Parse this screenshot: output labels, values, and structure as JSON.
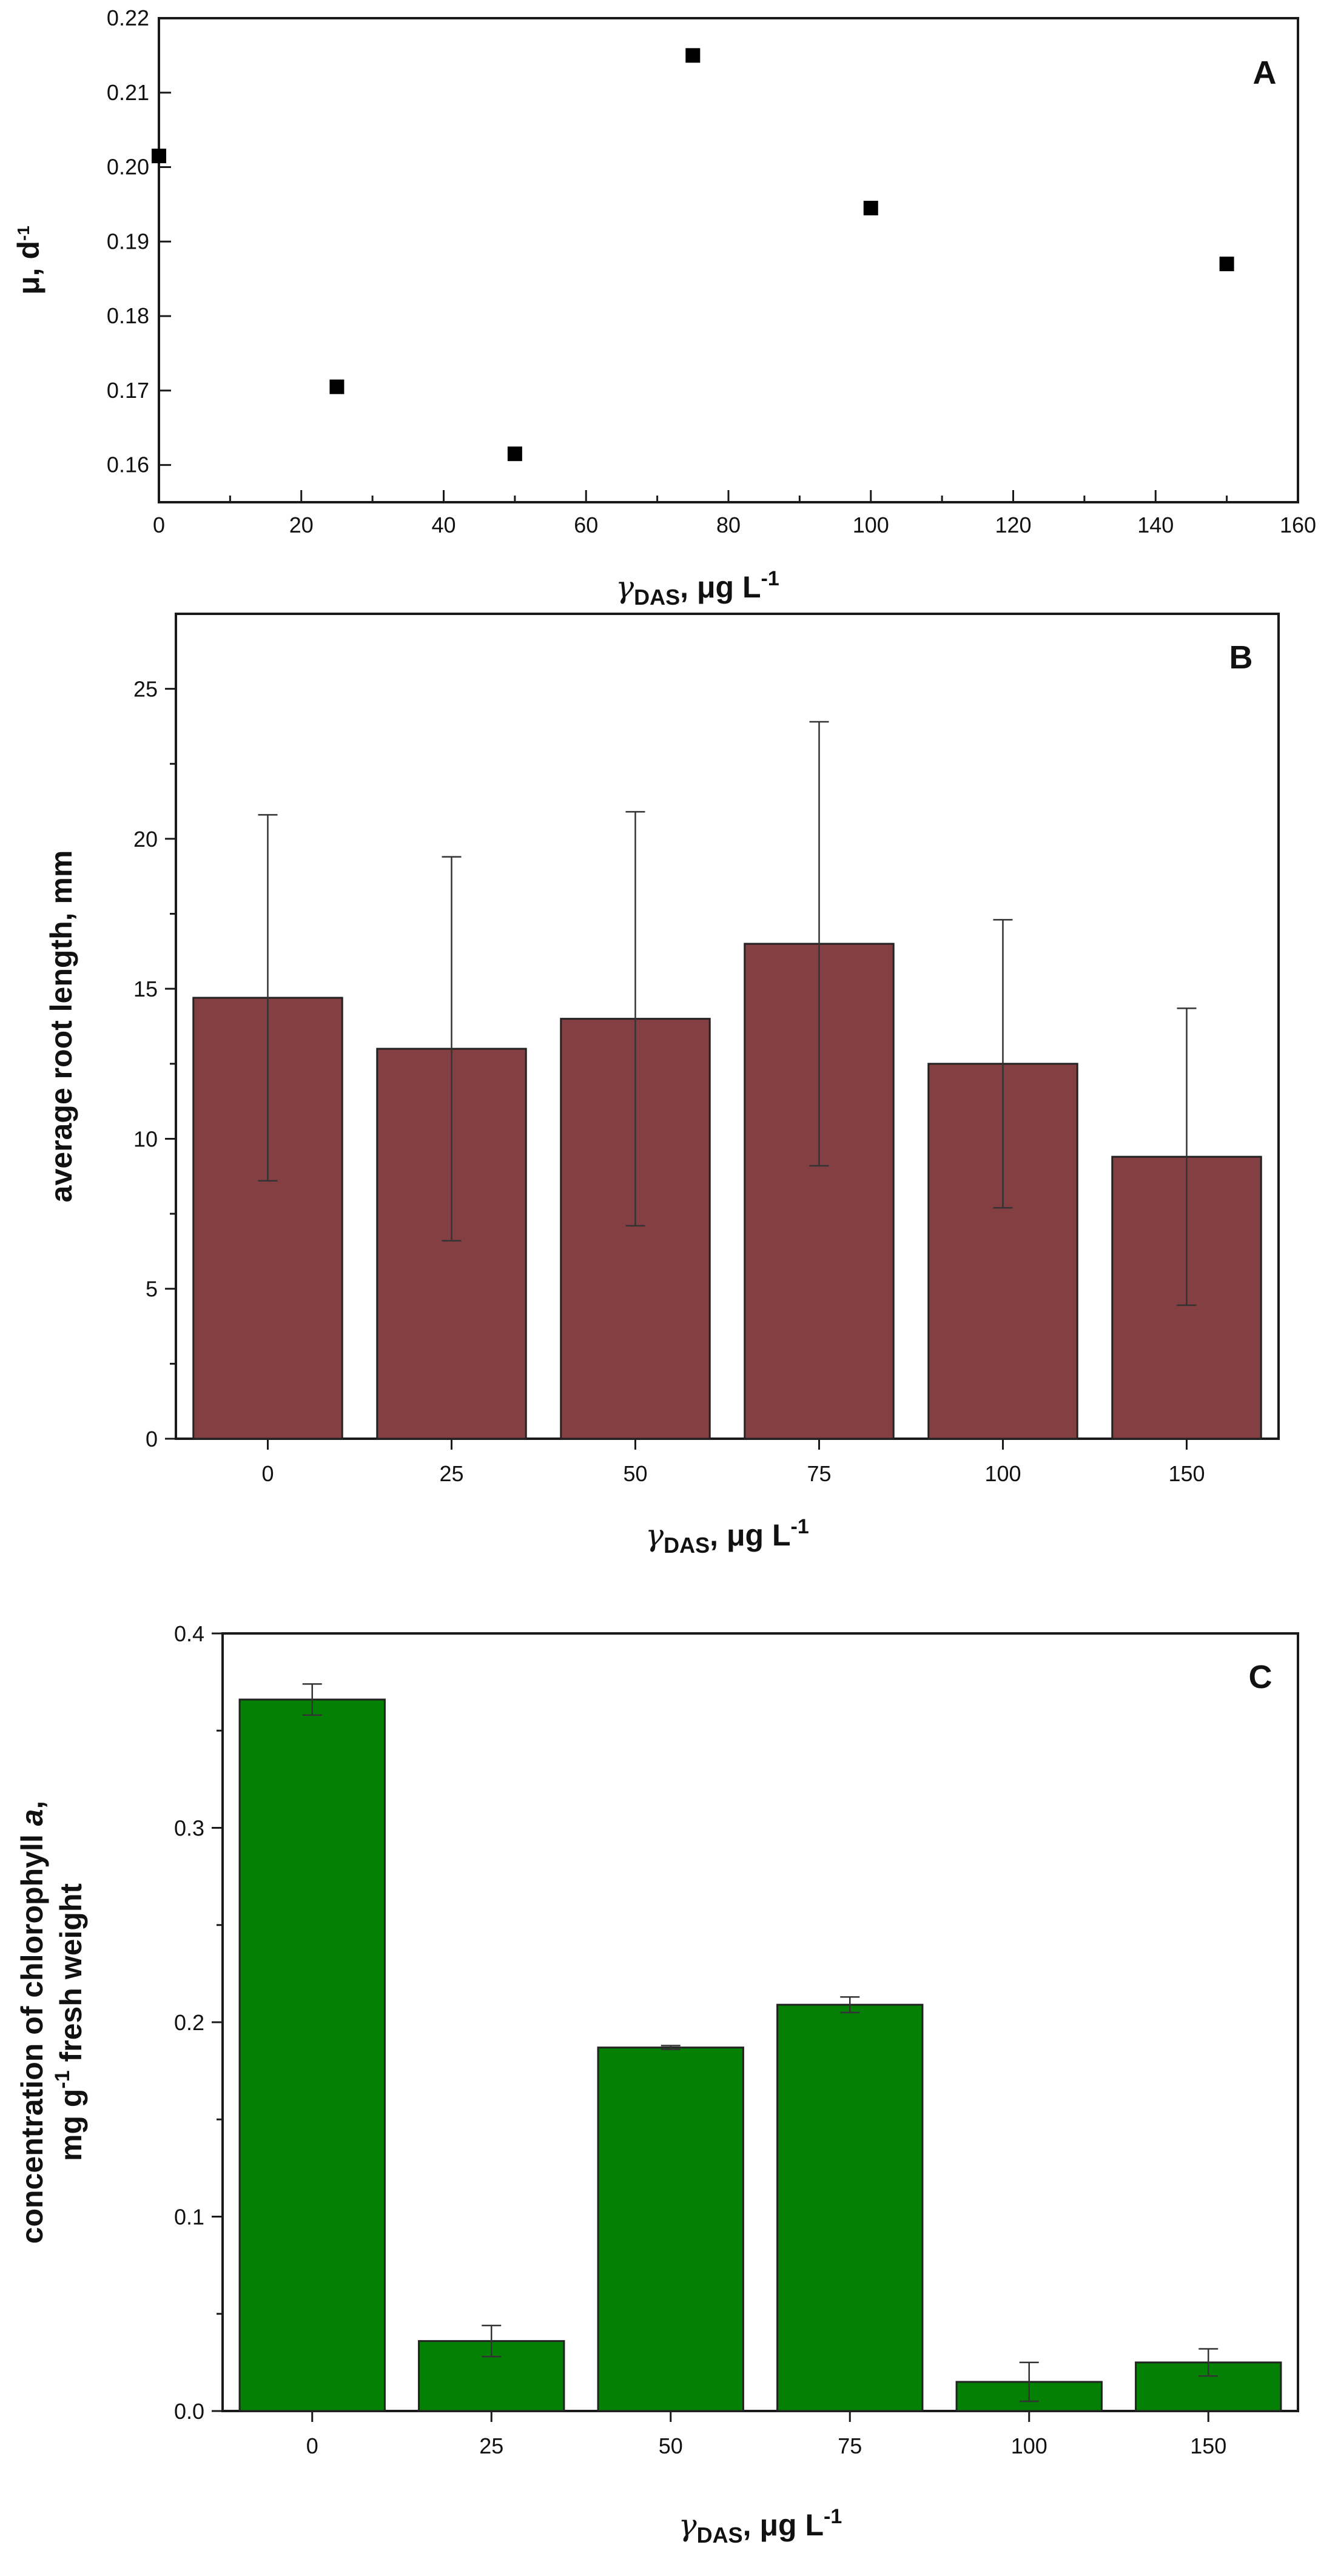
{
  "chart_data": [
    {
      "panel": "A",
      "type": "scatter",
      "x": [
        0,
        25,
        50,
        75,
        100,
        150
      ],
      "y": [
        0.2015,
        0.1705,
        0.1615,
        0.215,
        0.1945,
        0.187
      ],
      "xlim": [
        0,
        160
      ],
      "ylim": [
        0.155,
        0.22
      ],
      "xticks": [
        0,
        20,
        40,
        60,
        80,
        100,
        120,
        140,
        160
      ],
      "yticks": [
        0.16,
        0.17,
        0.18,
        0.19,
        0.2,
        0.21,
        0.22
      ],
      "ytick_labels": [
        "0.16",
        "0.17",
        "0.18",
        "0.19",
        "0.20",
        "0.21",
        "0.22"
      ],
      "xlabel": {
        "main": "γ",
        "sub": "DAS",
        "rest": ", μg L",
        "sup": "-1"
      },
      "ylabel": {
        "main": "μ, d",
        "sup": "-1"
      },
      "label": "A",
      "marker_color": "#000000"
    },
    {
      "panel": "B",
      "type": "bar",
      "categories": [
        "0",
        "25",
        "50",
        "75",
        "100",
        "150"
      ],
      "values": [
        14.7,
        13.0,
        14.0,
        16.5,
        12.5,
        9.4
      ],
      "errors": [
        6.1,
        6.4,
        6.9,
        7.4,
        4.8,
        4.95
      ],
      "ylim": [
        0,
        27.5
      ],
      "yticks": [
        0,
        5,
        10,
        15,
        20,
        25
      ],
      "ytick_labels": [
        "0",
        "5",
        "10",
        "15",
        "20",
        "25"
      ],
      "xlabel": {
        "main": "γ",
        "sub": "DAS",
        "rest": ", μg L",
        "sup": "-1"
      },
      "ylabel": "average root length, mm",
      "label": "B",
      "bar_color": "#833f42"
    },
    {
      "panel": "C",
      "type": "bar",
      "categories": [
        "0",
        "25",
        "50",
        "75",
        "100",
        "150"
      ],
      "values": [
        0.366,
        0.036,
        0.187,
        0.209,
        0.015,
        0.025
      ],
      "errors": [
        0.008,
        0.008,
        0.001,
        0.004,
        0.01,
        0.007
      ],
      "ylim": [
        0,
        0.4
      ],
      "yticks": [
        0,
        0.1,
        0.2,
        0.3,
        0.4
      ],
      "ytick_labels": [
        "0.0",
        "0.1",
        "0.2",
        "0.3",
        "0.4"
      ],
      "xlabel": {
        "main": "γ",
        "sub": "DAS",
        "rest": ", μg L",
        "sup": "-1"
      },
      "ylabel": {
        "line1_pre": "concentration of chlorophyll ",
        "line1_ital": "a",
        "line1_post": ",",
        "line2_pre": "mg g",
        "line2_sup": "-1",
        "line2_post": " fresh weight"
      },
      "label": "C",
      "bar_color": "#048004"
    }
  ]
}
